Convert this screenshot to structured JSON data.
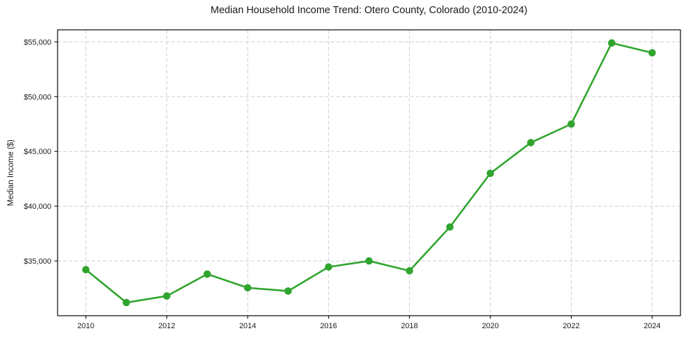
{
  "chart_data": {
    "type": "line",
    "title": "Median Household Income Trend: Otero County, Colorado (2010-2024)",
    "xlabel": "",
    "ylabel": "Median Income ($)",
    "x": [
      2010,
      2011,
      2012,
      2013,
      2014,
      2015,
      2016,
      2017,
      2018,
      2019,
      2020,
      2021,
      2022,
      2023,
      2024
    ],
    "series": [
      {
        "name": "Median Household Income",
        "values": [
          34200,
          31200,
          31800,
          33800,
          32550,
          32250,
          34450,
          35000,
          34100,
          38100,
          43000,
          45800,
          47500,
          54900,
          54000
        ]
      }
    ],
    "xticks": [
      2010,
      2012,
      2014,
      2016,
      2018,
      2020,
      2022,
      2024
    ],
    "xtick_labels": [
      "2010",
      "2012",
      "2014",
      "2016",
      "2018",
      "2020",
      "2022",
      "2024"
    ],
    "yticks": [
      35000,
      40000,
      45000,
      50000,
      55000
    ],
    "ytick_labels": [
      "$35,000",
      "$40,000",
      "$45,000",
      "$50,000",
      "$55,000"
    ],
    "xlim": [
      2009.3,
      2024.7
    ],
    "ylim": [
      30000,
      56100
    ],
    "grid": true,
    "grid_style": "dashed",
    "legend_position": "none",
    "line_color": "#30a52e",
    "marker": "circle",
    "background_color": "#ffffff",
    "axis_color": "#1a1a1a"
  }
}
